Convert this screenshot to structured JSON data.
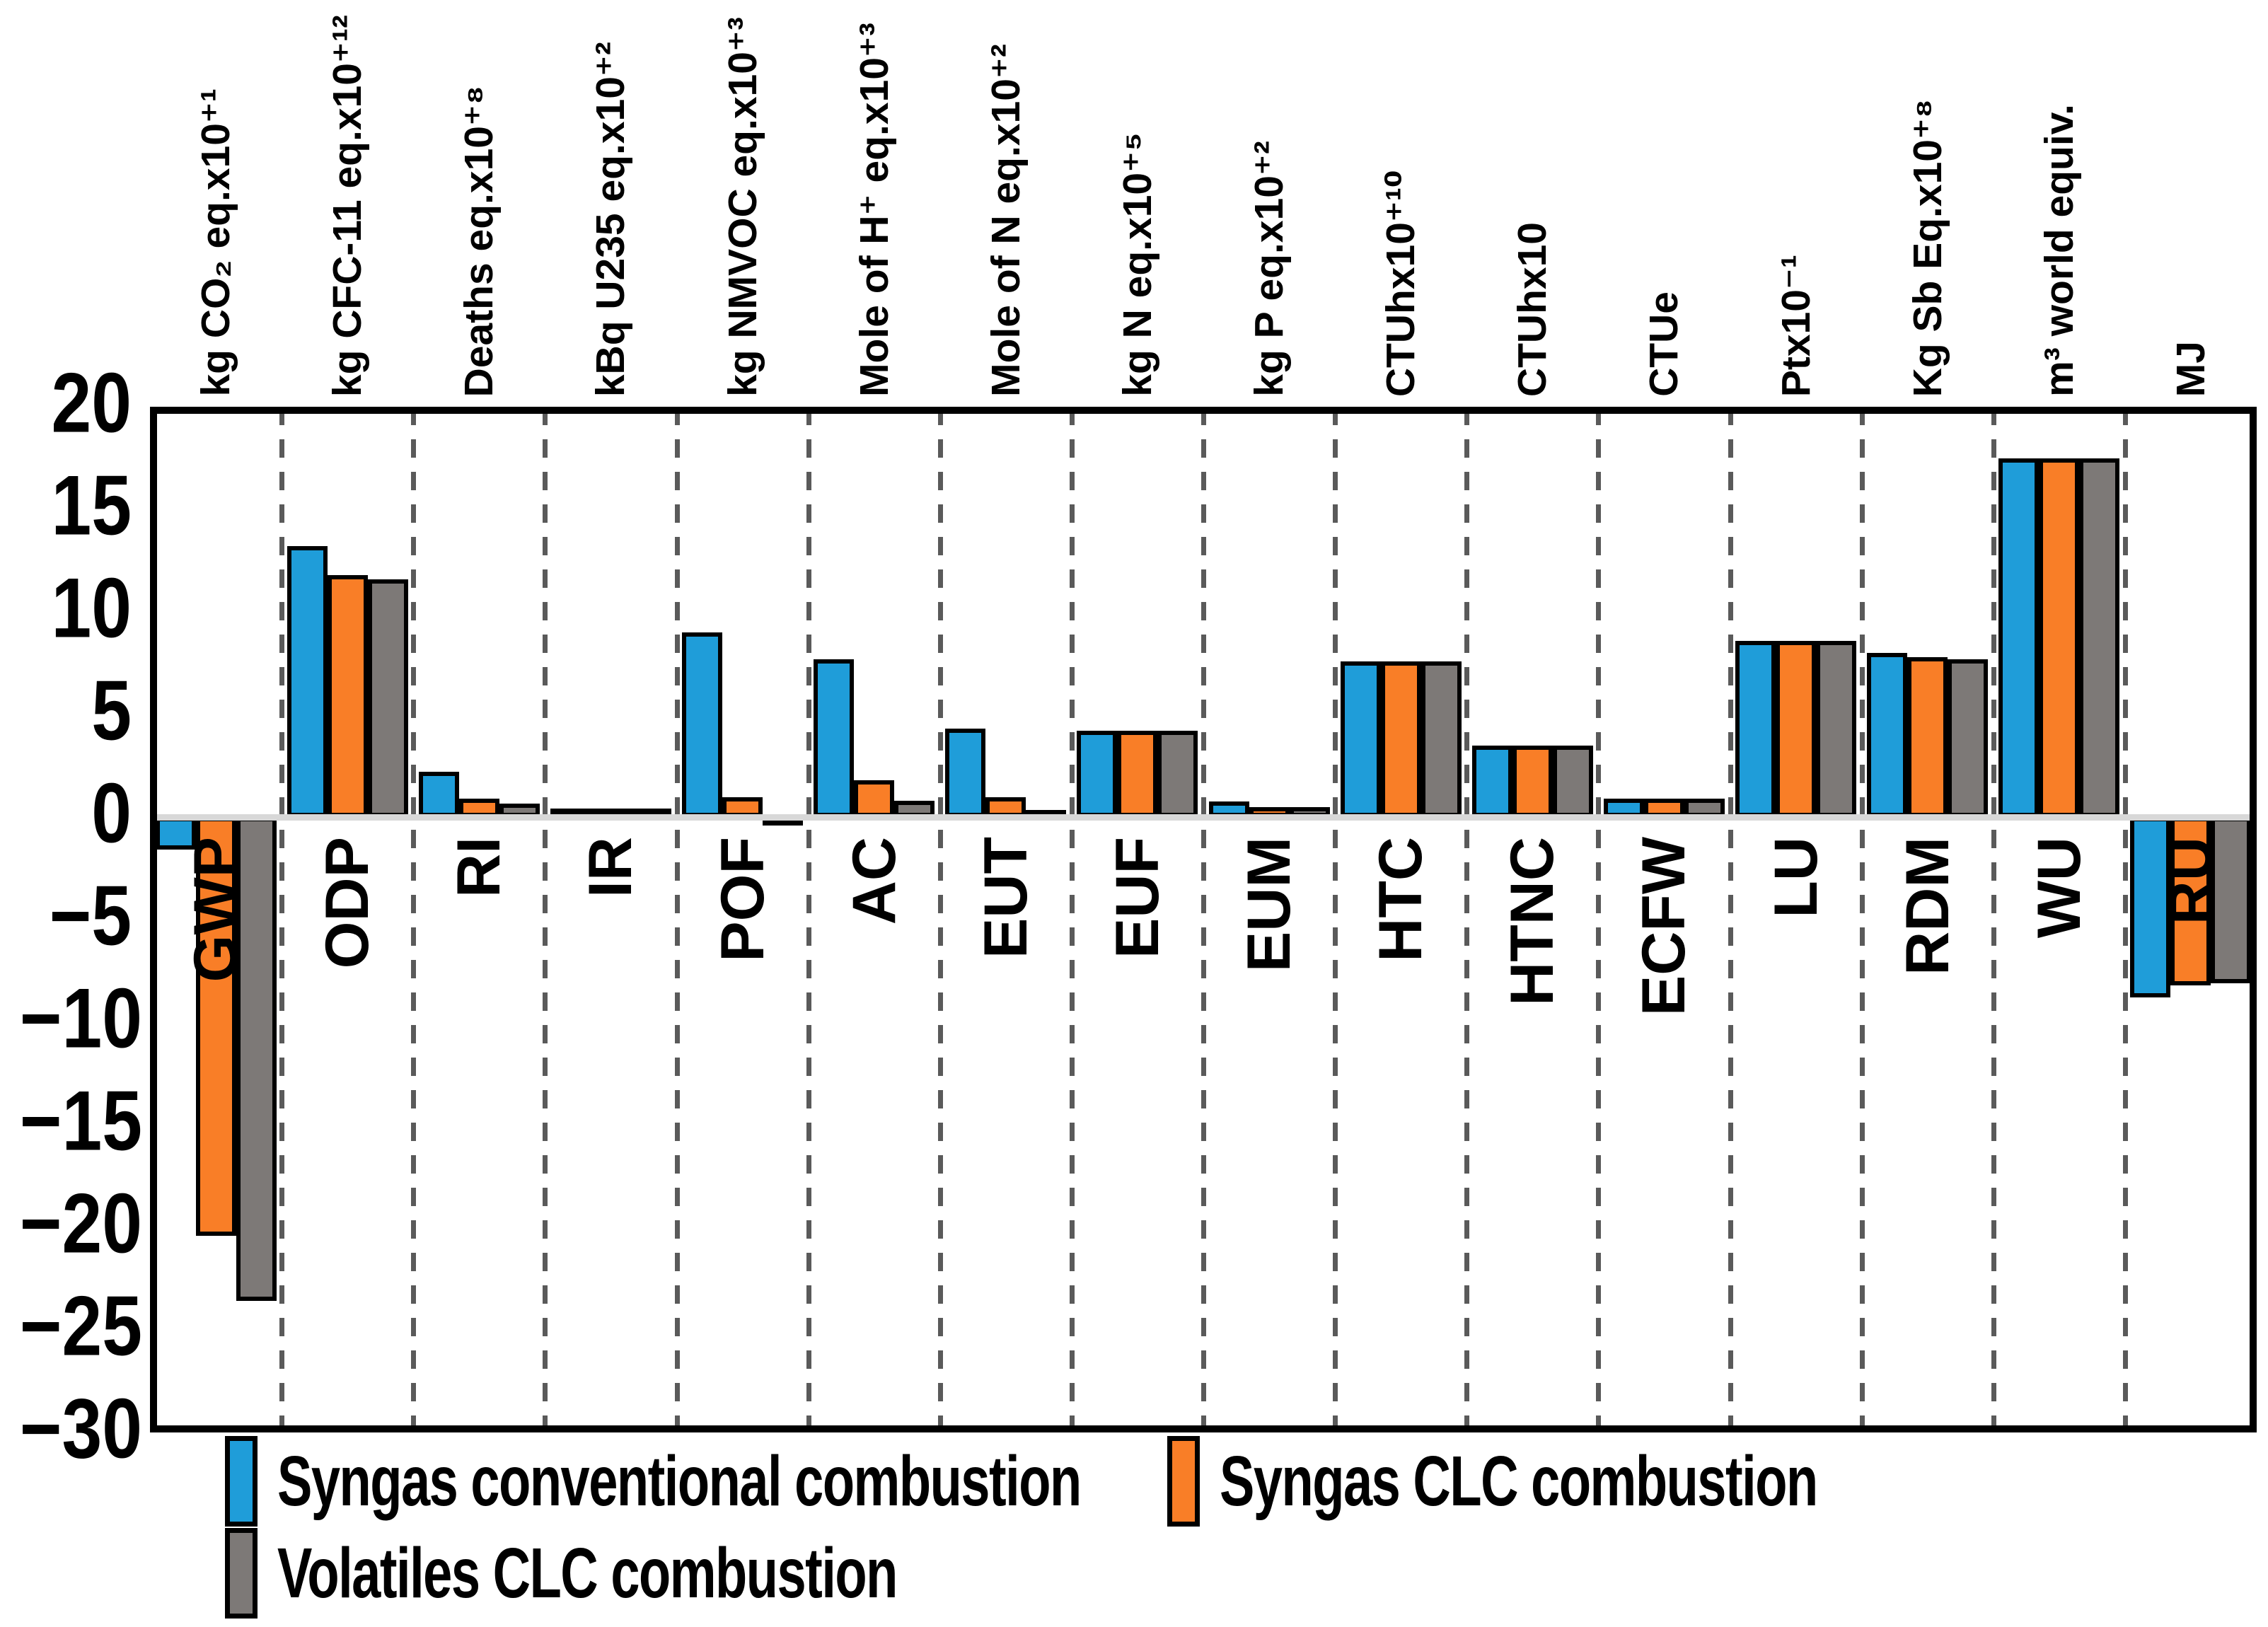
{
  "chart_data": {
    "type": "bar",
    "title": "",
    "categories": [
      "GWP",
      "ODP",
      "RI",
      "IR",
      "POF",
      "AC",
      "EUT",
      "EUF",
      "EUM",
      "HTC",
      "HTNC",
      "ECFW",
      "LU",
      "RDM",
      "WU",
      "RU"
    ],
    "unit_labels": [
      "kg CO₂ eq.x10⁺¹",
      "kg CFC-11 eq.x10⁺¹²",
      "Deaths eq.x10⁺⁸",
      "kBq U235 eq.x10⁺²",
      "kg NMVOC eq.x10⁺³",
      "Mole of H⁺ eq.x10⁺³",
      "Mole of N eq.x10⁺²",
      "kg N eq.x10⁺⁵",
      "kg P eq.x10⁺²",
      "CTUhx10⁺¹⁰",
      "CTUhx10",
      "CTUe",
      "Ptx10⁻¹",
      "Kg Sb Eq.x10⁺⁸",
      "m³ world equiv.",
      "MJ"
    ],
    "series": [
      {
        "name": "Syngas conventional combustion",
        "color": "#1f9dd9",
        "values": [
          -1.6,
          13.2,
          2.2,
          0.4,
          9.0,
          7.7,
          4.3,
          4.2,
          0.75,
          7.6,
          3.5,
          0.9,
          8.6,
          8.0,
          17.5,
          -8.8
        ]
      },
      {
        "name": "Syngas CLC combustion",
        "color": "#f97e27",
        "values": [
          -20.4,
          11.8,
          0.9,
          0.4,
          0.95,
          1.8,
          0.95,
          4.2,
          0.5,
          7.6,
          3.5,
          0.9,
          8.6,
          7.8,
          17.5,
          -8.2
        ]
      },
      {
        "name": "Volatiles CLC combustion",
        "color": "#7d7977",
        "values": [
          -23.6,
          11.6,
          0.65,
          0.4,
          -0.4,
          0.8,
          0.35,
          4.2,
          0.5,
          7.6,
          3.5,
          0.9,
          8.6,
          7.7,
          17.5,
          -8.1
        ]
      }
    ],
    "y_axis": {
      "min": -30,
      "max": 20,
      "step": 5,
      "ticks": [
        20,
        15,
        10,
        5,
        0,
        -5,
        -10,
        -15,
        -20,
        -25,
        -30
      ]
    },
    "grid": {
      "vertical_group_separators": "dashed"
    },
    "legend_position": "bottom",
    "colors": {
      "bar_border": "#000000",
      "zero_line": "#d8d8d8",
      "separator": "#5a5a5a",
      "plot_border": "#000000"
    }
  }
}
